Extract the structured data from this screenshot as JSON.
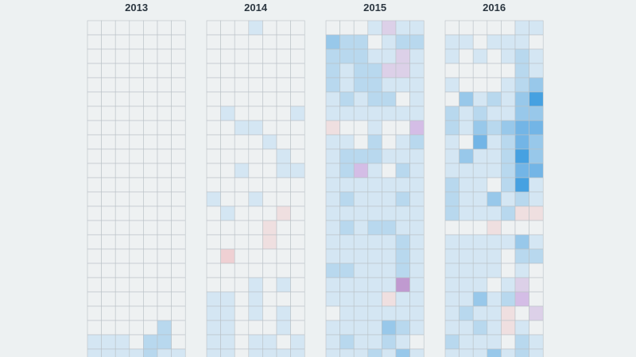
{
  "chart_data": {
    "type": "heatmap",
    "panel_titles": [
      "2013",
      "2014",
      "2015",
      "2016"
    ],
    "columns_per_panel": 7,
    "rows_visible": 24,
    "color_scale": {
      "blank": "#eef1f2",
      "stops": [
        "#d4e6f3",
        "#b8d8ee",
        "#98c8ea",
        "#73b5e6",
        "#46a1e1",
        "#2d8fd8"
      ],
      "pink": [
        "#efdfe0",
        "#efd0d3"
      ],
      "purple": [
        "#dcd0e8",
        "#d4bde6",
        "#c09ad0"
      ]
    },
    "grid_lines": true,
    "panels": [
      {
        "year": "2013",
        "cells": [
          [
            0,
            0,
            0,
            0,
            0,
            0,
            0
          ],
          [
            0,
            0,
            0,
            0,
            0,
            0,
            0
          ],
          [
            0,
            0,
            0,
            0,
            0,
            0,
            0
          ],
          [
            0,
            0,
            0,
            0,
            0,
            0,
            0
          ],
          [
            0,
            0,
            0,
            0,
            0,
            0,
            0
          ],
          [
            0,
            0,
            0,
            0,
            0,
            0,
            0
          ],
          [
            0,
            0,
            0,
            0,
            0,
            0,
            0
          ],
          [
            0,
            0,
            0,
            0,
            0,
            0,
            0
          ],
          [
            0,
            0,
            0,
            0,
            0,
            0,
            0
          ],
          [
            0,
            0,
            0,
            0,
            0,
            0,
            0
          ],
          [
            0,
            0,
            0,
            0,
            0,
            0,
            0
          ],
          [
            0,
            0,
            0,
            0,
            0,
            0,
            0
          ],
          [
            0,
            0,
            0,
            0,
            0,
            0,
            0
          ],
          [
            0,
            0,
            0,
            0,
            0,
            0,
            0
          ],
          [
            0,
            0,
            0,
            0,
            0,
            0,
            0
          ],
          [
            0,
            0,
            0,
            0,
            0,
            0,
            0
          ],
          [
            0,
            0,
            0,
            0,
            0,
            0,
            0
          ],
          [
            0,
            0,
            0,
            0,
            0,
            0,
            0
          ],
          [
            0,
            0,
            0,
            0,
            0,
            0,
            0
          ],
          [
            0,
            0,
            0,
            0,
            0,
            0,
            0
          ],
          [
            0,
            0,
            0,
            0,
            0,
            0,
            0
          ],
          [
            0,
            0,
            0,
            0,
            0,
            2,
            0
          ],
          [
            1,
            1,
            1,
            0,
            2,
            2,
            0
          ],
          [
            1,
            1,
            1,
            1,
            2,
            1,
            1
          ]
        ]
      },
      {
        "year": "2014",
        "cells": [
          [
            0,
            0,
            0,
            1,
            0,
            0,
            0
          ],
          [
            0,
            0,
            0,
            0,
            0,
            0,
            0
          ],
          [
            0,
            0,
            0,
            0,
            0,
            0,
            0
          ],
          [
            0,
            0,
            0,
            0,
            0,
            0,
            0
          ],
          [
            0,
            0,
            0,
            0,
            0,
            0,
            0
          ],
          [
            0,
            0,
            0,
            0,
            0,
            0,
            0
          ],
          [
            0,
            1,
            0,
            0,
            0,
            0,
            1
          ],
          [
            0,
            0,
            1,
            1,
            0,
            0,
            0
          ],
          [
            0,
            0,
            0,
            0,
            1,
            0,
            0
          ],
          [
            0,
            0,
            0,
            0,
            0,
            1,
            0
          ],
          [
            0,
            0,
            1,
            0,
            0,
            1,
            1
          ],
          [
            0,
            0,
            0,
            0,
            0,
            0,
            0
          ],
          [
            1,
            0,
            0,
            1,
            0,
            0,
            0
          ],
          [
            0,
            1,
            0,
            0,
            0,
            "p1",
            0
          ],
          [
            0,
            0,
            0,
            0,
            "p1",
            0,
            0
          ],
          [
            0,
            0,
            0,
            0,
            "p1",
            0,
            0
          ],
          [
            0,
            "p2",
            0,
            0,
            0,
            0,
            0
          ],
          [
            0,
            0,
            0,
            0,
            0,
            0,
            0
          ],
          [
            0,
            0,
            0,
            1,
            0,
            1,
            0
          ],
          [
            1,
            1,
            0,
            1,
            0,
            0,
            0
          ],
          [
            1,
            1,
            0,
            1,
            0,
            1,
            0
          ],
          [
            1,
            1,
            0,
            0,
            0,
            1,
            0
          ],
          [
            1,
            1,
            0,
            1,
            1,
            0,
            1
          ],
          [
            1,
            1,
            0,
            1,
            1,
            1,
            1
          ]
        ]
      },
      {
        "year": "2015",
        "cells": [
          [
            0,
            0,
            0,
            1,
            "u1",
            1,
            1
          ],
          [
            3,
            2,
            2,
            0,
            1,
            2,
            2
          ],
          [
            2,
            2,
            2,
            1,
            1,
            "u1",
            1
          ],
          [
            2,
            1,
            2,
            2,
            "u1",
            "u1",
            1
          ],
          [
            2,
            1,
            2,
            2,
            1,
            1,
            1
          ],
          [
            1,
            2,
            1,
            2,
            2,
            0,
            1
          ],
          [
            1,
            1,
            1,
            1,
            1,
            1,
            1
          ],
          [
            "p1",
            0,
            0,
            1,
            0,
            0,
            "u2"
          ],
          [
            1,
            1,
            0,
            2,
            0,
            1,
            2
          ],
          [
            1,
            2,
            2,
            2,
            1,
            1,
            1
          ],
          [
            1,
            2,
            "u2",
            1,
            0,
            2,
            1
          ],
          [
            1,
            1,
            1,
            1,
            1,
            1,
            1
          ],
          [
            1,
            2,
            1,
            1,
            1,
            2,
            1
          ],
          [
            1,
            1,
            1,
            1,
            1,
            1,
            1
          ],
          [
            1,
            2,
            1,
            2,
            2,
            1,
            1
          ],
          [
            1,
            1,
            1,
            1,
            1,
            2,
            1
          ],
          [
            1,
            1,
            1,
            1,
            1,
            2,
            1
          ],
          [
            2,
            2,
            1,
            1,
            1,
            2,
            1
          ],
          [
            1,
            1,
            1,
            1,
            1,
            "u3",
            1
          ],
          [
            1,
            1,
            1,
            1,
            "p1",
            1,
            1
          ],
          [
            0,
            1,
            1,
            1,
            1,
            1,
            1
          ],
          [
            1,
            1,
            1,
            1,
            3,
            2,
            1
          ],
          [
            1,
            2,
            1,
            1,
            2,
            1,
            0
          ],
          [
            1,
            1,
            1,
            2,
            1,
            3,
            1
          ]
        ]
      },
      {
        "year": "2016",
        "cells": [
          [
            0,
            0,
            0,
            0,
            0,
            1,
            1
          ],
          [
            1,
            1,
            0,
            1,
            1,
            1,
            0
          ],
          [
            1,
            0,
            1,
            0,
            1,
            2,
            1
          ],
          [
            0,
            0,
            0,
            0,
            0,
            2,
            1
          ],
          [
            1,
            0,
            0,
            0,
            1,
            2,
            3
          ],
          [
            0,
            3,
            1,
            2,
            1,
            3,
            5
          ],
          [
            2,
            1,
            2,
            1,
            1,
            3,
            3
          ],
          [
            2,
            1,
            3,
            2,
            3,
            4,
            4
          ],
          [
            1,
            0,
            4,
            1,
            2,
            4,
            3
          ],
          [
            1,
            3,
            1,
            1,
            2,
            5,
            3
          ],
          [
            1,
            1,
            1,
            1,
            2,
            4,
            4
          ],
          [
            2,
            1,
            1,
            0,
            2,
            5,
            1
          ],
          [
            2,
            1,
            1,
            3,
            1,
            2,
            1
          ],
          [
            2,
            1,
            1,
            1,
            2,
            "p1",
            "p1"
          ],
          [
            0,
            0,
            0,
            "p1",
            0,
            0,
            0
          ],
          [
            1,
            1,
            1,
            1,
            1,
            3,
            1
          ],
          [
            1,
            1,
            1,
            1,
            0,
            2,
            2
          ],
          [
            1,
            1,
            1,
            1,
            0,
            1,
            0
          ],
          [
            1,
            1,
            1,
            0,
            1,
            "u1",
            0
          ],
          [
            1,
            1,
            3,
            1,
            2,
            "u2",
            0
          ],
          [
            1,
            2,
            1,
            1,
            "p1",
            0,
            "u1"
          ],
          [
            1,
            1,
            2,
            1,
            "p1",
            1,
            0
          ],
          [
            2,
            1,
            1,
            1,
            0,
            2,
            1
          ],
          [
            1,
            1,
            1,
            3,
            1,
            2,
            1
          ]
        ]
      }
    ]
  }
}
